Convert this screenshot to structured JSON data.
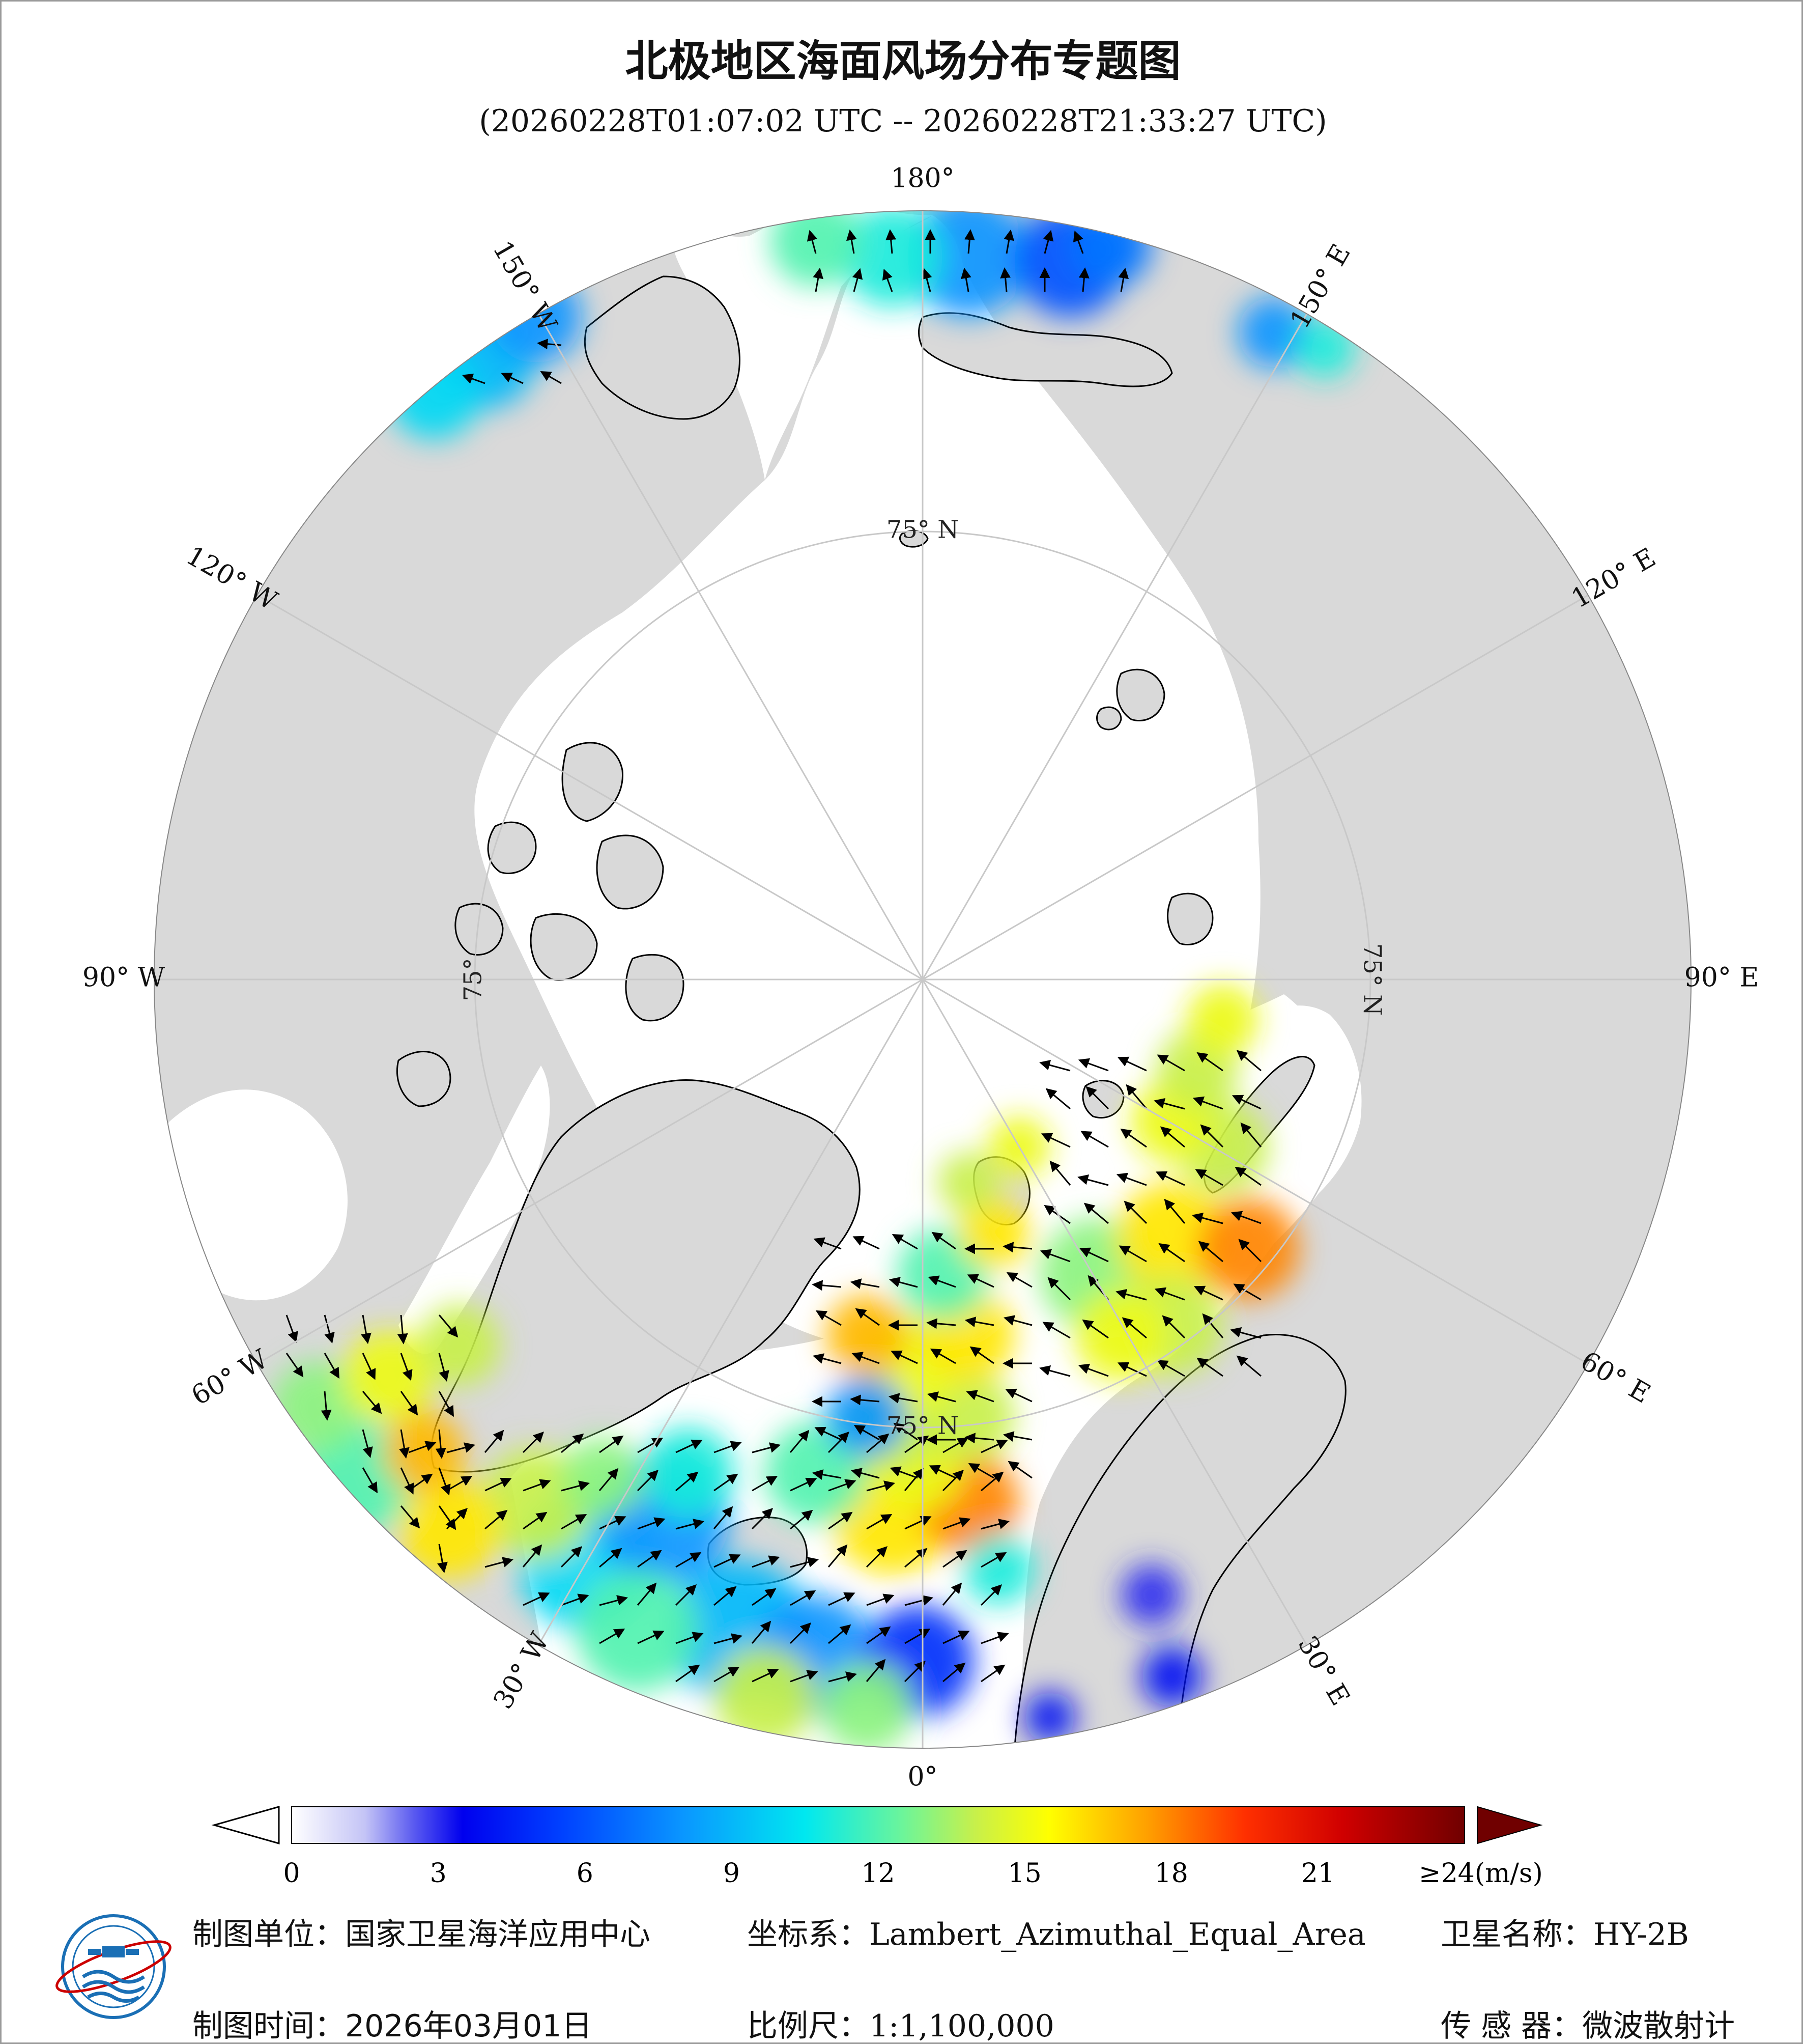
{
  "header": {
    "title": "北极地区海面风场分布专题图",
    "subtitle": "(20260228T01:07:02 UTC -- 20260228T21:33:27 UTC)"
  },
  "map": {
    "projection": "Lambert_Azimuthal_Equal_Area",
    "center": "North Pole",
    "longitude_labels": [
      {
        "text": "180°",
        "lon": 180
      },
      {
        "text": "150° E",
        "lon": 150
      },
      {
        "text": "120° E",
        "lon": 120
      },
      {
        "text": "90° E",
        "lon": 90
      },
      {
        "text": "60° E",
        "lon": 60
      },
      {
        "text": "30° E",
        "lon": 30
      },
      {
        "text": "0°",
        "lon": 0
      },
      {
        "text": "30° W",
        "lon": -30
      },
      {
        "text": "60° W",
        "lon": -60
      },
      {
        "text": "90° W",
        "lon": -90
      },
      {
        "text": "120° W",
        "lon": -120
      },
      {
        "text": "150° W",
        "lon": -150
      }
    ],
    "latitude_labels": [
      {
        "text": "75° N",
        "lon": 180
      },
      {
        "text": "75° N",
        "lon": 90
      },
      {
        "text": "75° N",
        "lon": 0
      },
      {
        "text": "75°",
        "lon": -90
      }
    ],
    "colors": {
      "land": "#d9d9d9",
      "ice_and_ocean_no_data": "#ffffff",
      "coastline": "#000000",
      "graticule": "#c8c8c8",
      "wind_arrow": "#000000"
    }
  },
  "colorbar": {
    "unit_label": "≥24(m/s)",
    "ticks": [
      "0",
      "3",
      "6",
      "9",
      "12",
      "15",
      "18",
      "21"
    ],
    "tick_values": [
      0,
      3,
      6,
      9,
      12,
      15,
      18,
      21
    ],
    "range": [
      0,
      24
    ],
    "stops": [
      {
        "v": 0,
        "c": "#ffffff"
      },
      {
        "v": 1.5,
        "c": "#c4c4f6"
      },
      {
        "v": 2.5,
        "c": "#5a5af0"
      },
      {
        "v": 3.5,
        "c": "#0000ee"
      },
      {
        "v": 5.5,
        "c": "#0040ff"
      },
      {
        "v": 8,
        "c": "#0a96ff"
      },
      {
        "v": 10.5,
        "c": "#00e8f0"
      },
      {
        "v": 12.5,
        "c": "#6cf59a"
      },
      {
        "v": 14,
        "c": "#c8f04a"
      },
      {
        "v": 15.5,
        "c": "#ffff00"
      },
      {
        "v": 17.5,
        "c": "#ffa000"
      },
      {
        "v": 19.5,
        "c": "#ff3000"
      },
      {
        "v": 21.5,
        "c": "#d00000"
      },
      {
        "v": 24,
        "c": "#700000"
      }
    ]
  },
  "footer": {
    "unit_label": "制图单位：",
    "unit_value": "国家卫星海洋应用中心",
    "crs_label": "坐标系：",
    "crs_value": "Lambert_Azimuthal_Equal_Area",
    "satellite_label": "卫星名称：",
    "satellite_value": "HY-2B",
    "time_label": "制图时间：",
    "time_value": "2026年03月01日",
    "scale_label": "比例尺：",
    "scale_value": "1:1,100,000",
    "sensor_label": "传 感 器：",
    "sensor_value": "微波散射计"
  }
}
